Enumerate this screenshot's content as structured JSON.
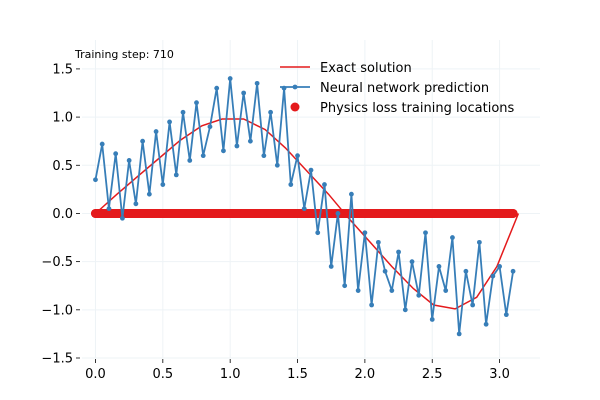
{
  "annotation": "Training step: 710",
  "chart_data": {
    "type": "line",
    "title": "",
    "xlabel": "",
    "ylabel": "",
    "xlim": [
      -0.1,
      3.3
    ],
    "ylim": [
      -1.5,
      1.8
    ],
    "x_ticks": [
      "0.0",
      "0.5",
      "1.0",
      "1.5",
      "2.0",
      "2.5",
      "3.0"
    ],
    "y_ticks": [
      "−1.5",
      "−1.0",
      "−0.5",
      "0.0",
      "0.5",
      "1.0",
      "1.5"
    ],
    "grid": true,
    "legend_position": "top-right",
    "series": [
      {
        "name": "Exact solution",
        "color": "#e41a1c",
        "x": [
          0.0,
          0.16,
          0.31,
          0.47,
          0.63,
          0.79,
          0.94,
          1.1,
          1.26,
          1.41,
          1.57,
          1.73,
          1.88,
          2.04,
          2.2,
          2.36,
          2.51,
          2.67,
          2.83,
          2.98,
          3.14
        ],
        "y": [
          0.0,
          0.2,
          0.38,
          0.57,
          0.76,
          0.91,
          0.98,
          0.98,
          0.87,
          0.68,
          0.44,
          0.2,
          -0.05,
          -0.3,
          -0.55,
          -0.78,
          -0.95,
          -0.99,
          -0.87,
          -0.55,
          0.0
        ]
      },
      {
        "name": "Neural network prediction",
        "color": "#377eb8",
        "x": [
          0.0,
          0.05,
          0.1,
          0.15,
          0.2,
          0.25,
          0.3,
          0.35,
          0.4,
          0.45,
          0.5,
          0.55,
          0.6,
          0.65,
          0.7,
          0.75,
          0.8,
          0.85,
          0.9,
          0.95,
          1.0,
          1.05,
          1.1,
          1.15,
          1.2,
          1.25,
          1.3,
          1.35,
          1.4,
          1.45,
          1.5,
          1.55,
          1.6,
          1.65,
          1.7,
          1.75,
          1.8,
          1.85,
          1.9,
          1.95,
          2.0,
          2.05,
          2.1,
          2.15,
          2.2,
          2.25,
          2.3,
          2.35,
          2.4,
          2.45,
          2.5,
          2.55,
          2.6,
          2.65,
          2.7,
          2.75,
          2.8,
          2.85,
          2.9,
          2.95,
          3.0,
          3.05,
          3.1
        ],
        "y": [
          0.35,
          0.72,
          0.05,
          0.62,
          -0.05,
          0.55,
          0.1,
          0.75,
          0.2,
          0.85,
          0.3,
          0.95,
          0.4,
          1.05,
          0.55,
          1.15,
          0.6,
          0.9,
          1.3,
          0.65,
          1.4,
          0.7,
          1.25,
          0.75,
          1.35,
          0.6,
          1.05,
          0.5,
          1.3,
          0.3,
          0.6,
          0.05,
          0.45,
          -0.2,
          0.3,
          -0.55,
          0.0,
          -0.75,
          0.2,
          -0.8,
          -0.2,
          -0.95,
          -0.3,
          -0.6,
          -0.8,
          -0.4,
          -1.0,
          -0.5,
          -0.85,
          -0.2,
          -1.1,
          -0.55,
          -0.8,
          -0.25,
          -1.25,
          -0.6,
          -0.95,
          -0.3,
          -1.15,
          -0.65,
          -0.55,
          -1.05,
          -0.6
        ]
      },
      {
        "name": "Physics loss training locations",
        "color": "#e41a1c",
        "x": [
          0.0,
          0.1,
          0.2,
          0.3,
          0.4,
          0.5,
          0.6,
          0.7,
          0.8,
          0.9,
          1.0,
          1.1,
          1.2,
          1.3,
          1.4,
          1.5,
          1.6,
          1.7,
          1.8,
          1.9,
          2.0,
          2.1,
          2.2,
          2.3,
          2.4,
          2.5,
          2.6,
          2.7,
          2.8,
          2.9,
          3.0,
          3.1
        ],
        "y": [
          0.0,
          0.0,
          0.0,
          0.0,
          0.0,
          0.0,
          0.0,
          0.0,
          0.0,
          0.0,
          0.0,
          0.0,
          0.0,
          0.0,
          0.0,
          0.0,
          0.0,
          0.0,
          0.0,
          0.0,
          0.0,
          0.0,
          0.0,
          0.0,
          0.0,
          0.0,
          0.0,
          0.0,
          0.0,
          0.0,
          0.0,
          0.0
        ]
      }
    ]
  }
}
